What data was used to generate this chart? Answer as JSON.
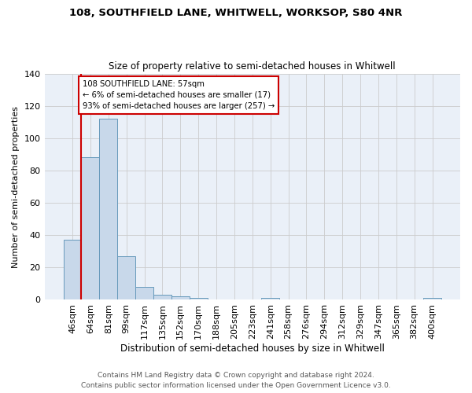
{
  "title1": "108, SOUTHFIELD LANE, WHITWELL, WORKSOP, S80 4NR",
  "title2": "Size of property relative to semi-detached houses in Whitwell",
  "xlabel": "Distribution of semi-detached houses by size in Whitwell",
  "ylabel": "Number of semi-detached properties",
  "bar_labels": [
    "46sqm",
    "64sqm",
    "81sqm",
    "99sqm",
    "117sqm",
    "135sqm",
    "152sqm",
    "170sqm",
    "188sqm",
    "205sqm",
    "223sqm",
    "241sqm",
    "258sqm",
    "276sqm",
    "294sqm",
    "312sqm",
    "329sqm",
    "347sqm",
    "365sqm",
    "382sqm",
    "400sqm"
  ],
  "bar_values": [
    37,
    88,
    112,
    27,
    8,
    3,
    2,
    1,
    0,
    0,
    0,
    1,
    0,
    0,
    0,
    0,
    0,
    0,
    0,
    0,
    1
  ],
  "bar_color": "#c8d8ea",
  "bar_edge_color": "#6699bb",
  "annotation_title": "108 SOUTHFIELD LANE: 57sqm",
  "annotation_line1": "← 6% of semi-detached houses are smaller (17)",
  "annotation_line2": "93% of semi-detached houses are larger (257) →",
  "annotation_box_color": "#ffffff",
  "annotation_box_edge": "#cc0000",
  "red_line_color": "#cc0000",
  "ylim": [
    0,
    140
  ],
  "yticks": [
    0,
    20,
    40,
    60,
    80,
    100,
    120,
    140
  ],
  "grid_color": "#cccccc",
  "footer1": "Contains HM Land Registry data © Crown copyright and database right 2024.",
  "footer2": "Contains public sector information licensed under the Open Government Licence v3.0.",
  "bg_color": "#ffffff",
  "plot_bg_color": "#eaf0f8"
}
